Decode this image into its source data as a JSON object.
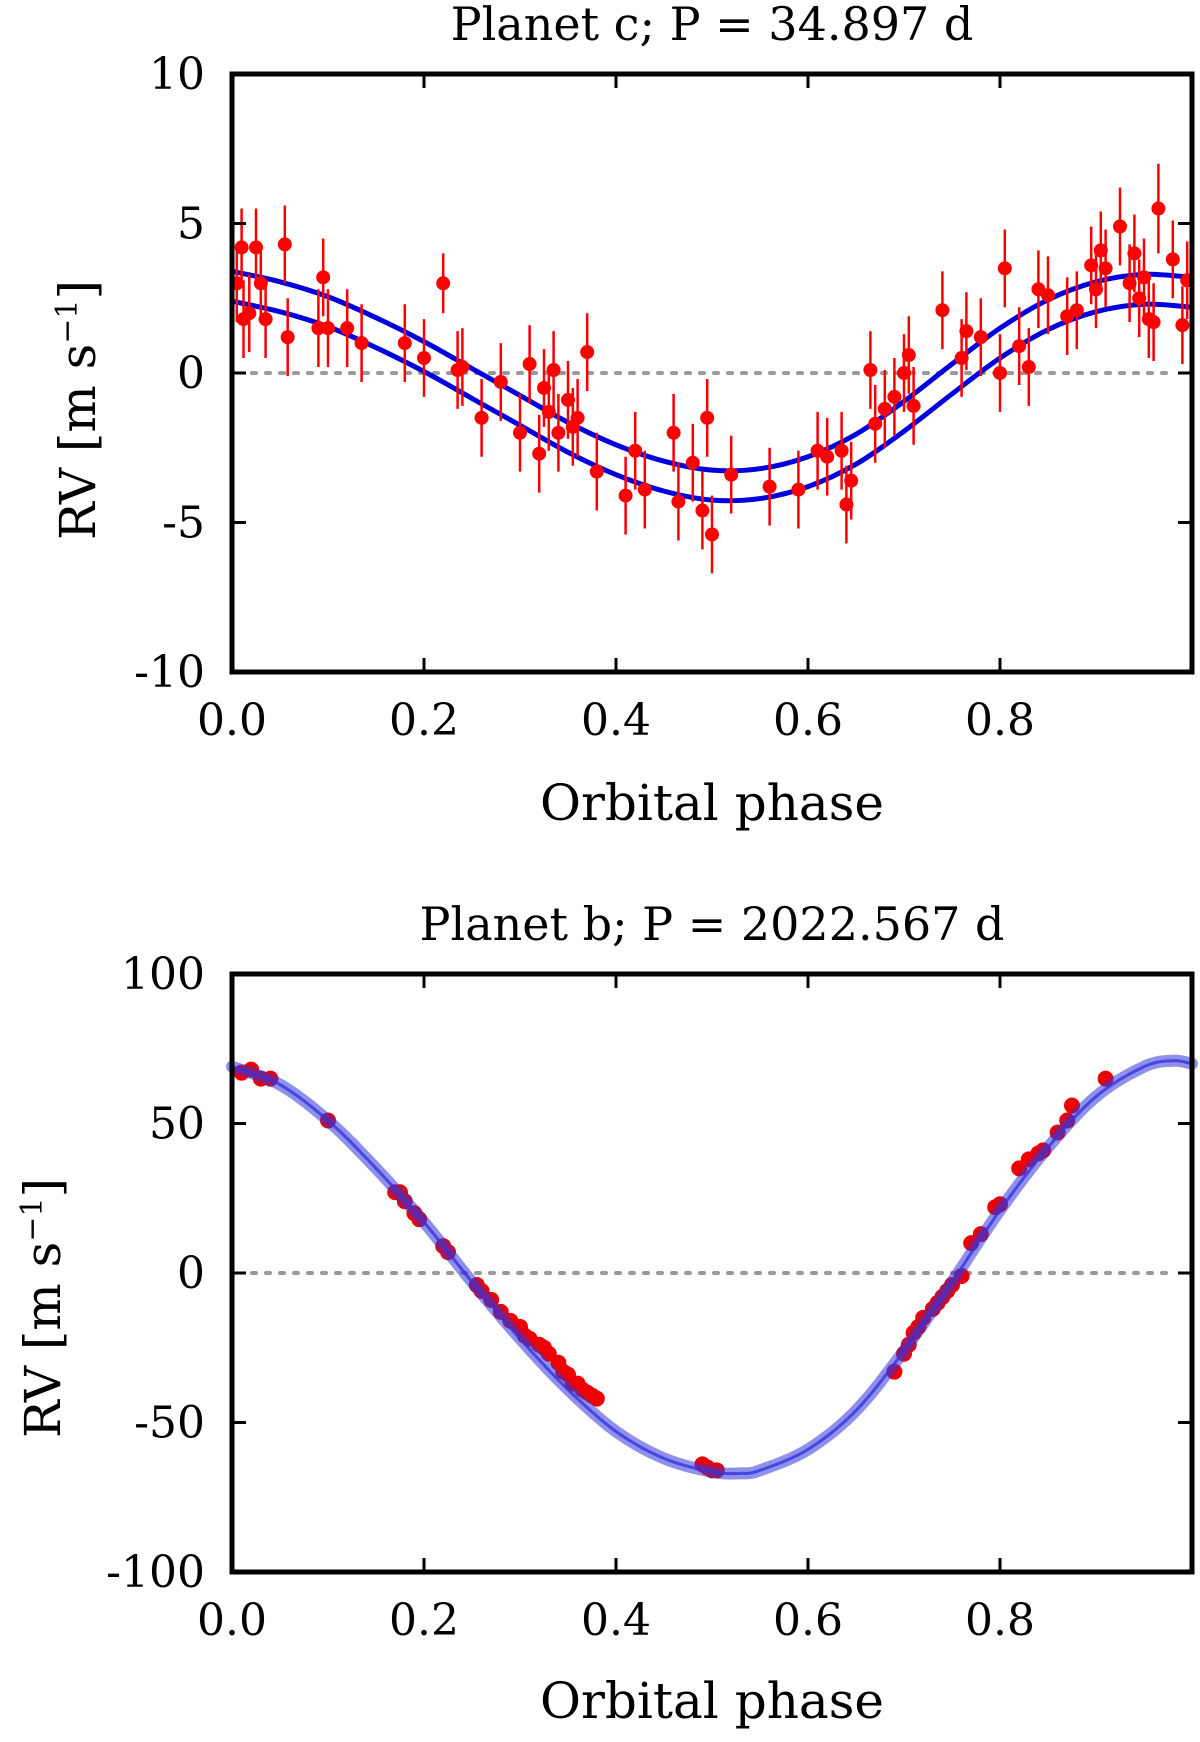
{
  "chart_data": [
    {
      "type": "scatter",
      "title": "Planet c; P = 34.897 d",
      "xlabel": "Orbital phase",
      "ylabel": {
        "main": "RV [m s",
        "sup": "−1",
        "close": "]"
      },
      "xlim": [
        0.0,
        1.0
      ],
      "ylim": [
        -10,
        10
      ],
      "xticks": [
        0.0,
        0.2,
        0.4,
        0.6,
        0.8
      ],
      "xtick_labels": [
        "0.0",
        "0.2",
        "0.4",
        "0.6",
        "0.8"
      ],
      "yticks": [
        10,
        5,
        0,
        -5,
        -10
      ],
      "ytick_labels": [
        "10",
        "5",
        "0",
        "-5",
        "-10"
      ],
      "zero_line": true,
      "colors": {
        "points": "#ff0000",
        "model": "#0000dd",
        "zero": "#999999",
        "frame": "#000000"
      },
      "model_band": {
        "kind": "pair",
        "upper_offset": 0.45,
        "lower_offset": -0.55,
        "curve": {
          "x": [
            0.0,
            0.05,
            0.1,
            0.15,
            0.2,
            0.25,
            0.3,
            0.35,
            0.4,
            0.45,
            0.5,
            0.55,
            0.6,
            0.65,
            0.7,
            0.75,
            0.8,
            0.85,
            0.9,
            0.95,
            1.0
          ],
          "y": [
            2.95,
            2.6,
            2.1,
            1.4,
            0.6,
            -0.3,
            -1.2,
            -2.1,
            -2.85,
            -3.4,
            -3.7,
            -3.65,
            -3.25,
            -2.5,
            -1.4,
            -0.15,
            1.05,
            2.0,
            2.6,
            2.85,
            2.75
          ]
        }
      },
      "points": {
        "x": [
          0.005,
          0.01,
          0.012,
          0.018,
          0.025,
          0.03,
          0.035,
          0.055,
          0.058,
          0.09,
          0.095,
          0.1,
          0.12,
          0.135,
          0.18,
          0.2,
          0.22,
          0.235,
          0.24,
          0.26,
          0.28,
          0.3,
          0.31,
          0.32,
          0.325,
          0.33,
          0.335,
          0.34,
          0.35,
          0.355,
          0.36,
          0.37,
          0.38,
          0.41,
          0.42,
          0.43,
          0.46,
          0.465,
          0.48,
          0.49,
          0.495,
          0.5,
          0.52,
          0.56,
          0.59,
          0.61,
          0.62,
          0.635,
          0.64,
          0.645,
          0.665,
          0.67,
          0.68,
          0.69,
          0.7,
          0.705,
          0.71,
          0.74,
          0.76,
          0.765,
          0.78,
          0.8,
          0.805,
          0.82,
          0.83,
          0.84,
          0.85,
          0.87,
          0.88,
          0.895,
          0.9,
          0.905,
          0.91,
          0.925,
          0.935,
          0.94,
          0.945,
          0.95,
          0.955,
          0.96,
          0.965,
          0.98,
          0.99,
          0.995
        ],
        "y": [
          3.0,
          4.2,
          1.8,
          2.0,
          4.2,
          3.0,
          1.8,
          4.3,
          1.2,
          1.5,
          3.2,
          1.5,
          1.5,
          1.0,
          1.0,
          0.5,
          3.0,
          0.1,
          0.2,
          -1.5,
          -0.3,
          -2.0,
          0.3,
          -2.7,
          -0.5,
          -1.3,
          0.1,
          -2.0,
          -0.9,
          -1.8,
          -1.5,
          0.7,
          -3.3,
          -4.1,
          -2.6,
          -3.9,
          -2.0,
          -4.3,
          -3.0,
          -4.6,
          -1.5,
          -5.4,
          -3.4,
          -3.8,
          -3.9,
          -2.6,
          -2.8,
          -2.6,
          -4.4,
          -3.6,
          0.1,
          -1.7,
          -1.2,
          -0.8,
          0.0,
          0.6,
          -1.1,
          2.1,
          0.5,
          1.4,
          1.2,
          0.0,
          3.5,
          0.9,
          0.2,
          2.8,
          2.6,
          1.9,
          2.1,
          3.6,
          2.8,
          4.1,
          3.5,
          4.9,
          3.0,
          4.0,
          2.5,
          3.2,
          1.8,
          1.7,
          5.5,
          3.8,
          1.6,
          3.1
        ],
        "err": [
          1.3,
          1.3,
          1.3,
          1.3,
          1.3,
          1.3,
          1.3,
          1.3,
          1.3,
          1.3,
          1.3,
          1.3,
          1.3,
          1.3,
          1.3,
          1.3,
          1.0,
          1.3,
          1.3,
          1.3,
          1.3,
          1.3,
          1.3,
          1.3,
          1.3,
          1.3,
          1.3,
          1.3,
          1.3,
          1.3,
          1.3,
          1.3,
          1.3,
          1.3,
          1.3,
          1.3,
          1.3,
          1.3,
          1.3,
          1.3,
          1.3,
          1.3,
          1.3,
          1.3,
          1.3,
          1.3,
          1.3,
          1.3,
          1.3,
          1.3,
          1.3,
          1.3,
          1.3,
          1.3,
          1.3,
          1.3,
          1.3,
          1.3,
          1.3,
          1.3,
          1.3,
          1.3,
          1.3,
          1.3,
          1.3,
          1.3,
          1.3,
          1.3,
          1.3,
          1.3,
          1.3,
          1.3,
          1.3,
          1.3,
          1.3,
          1.3,
          1.3,
          1.3,
          1.3,
          1.3,
          1.5,
          1.3,
          1.3,
          1.3
        ]
      }
    },
    {
      "type": "scatter",
      "title": "Planet b; P = 2022.567 d",
      "xlabel": "Orbital phase",
      "ylabel": {
        "main": "RV [m s",
        "sup": "−1",
        "close": "]"
      },
      "xlim": [
        0.0,
        1.0
      ],
      "ylim": [
        -100,
        100
      ],
      "xticks": [
        0.0,
        0.2,
        0.4,
        0.6,
        0.8
      ],
      "xtick_labels": [
        "0.0",
        "0.2",
        "0.4",
        "0.6",
        "0.8"
      ],
      "yticks": [
        100,
        50,
        0,
        -50,
        -100
      ],
      "ytick_labels": [
        "100",
        "50",
        "0",
        "-50",
        "-100"
      ],
      "zero_line": true,
      "colors": {
        "points": "#ee0000",
        "model": "#3333dd",
        "zero": "#999999",
        "frame": "#000000"
      },
      "model_band": {
        "kind": "thick",
        "curve": {
          "x": [
            0.0,
            0.05,
            0.1,
            0.15,
            0.2,
            0.25,
            0.3,
            0.35,
            0.4,
            0.45,
            0.5,
            0.53,
            0.55,
            0.6,
            0.65,
            0.7,
            0.75,
            0.8,
            0.85,
            0.9,
            0.95,
            0.98,
            1.0
          ],
          "y": [
            69,
            63,
            51,
            35,
            17,
            -3,
            -22,
            -39,
            -53,
            -62,
            -66.5,
            -67,
            -66,
            -59,
            -46,
            -26,
            -3,
            21,
            42,
            59,
            69,
            71,
            70
          ]
        }
      },
      "points": {
        "x": [
          0.01,
          0.02,
          0.03,
          0.04,
          0.1,
          0.17,
          0.175,
          0.18,
          0.19,
          0.195,
          0.22,
          0.225,
          0.255,
          0.26,
          0.27,
          0.28,
          0.29,
          0.3,
          0.305,
          0.31,
          0.32,
          0.325,
          0.33,
          0.34,
          0.345,
          0.35,
          0.355,
          0.36,
          0.365,
          0.37,
          0.375,
          0.38,
          0.49,
          0.495,
          0.5,
          0.505,
          0.69,
          0.7,
          0.705,
          0.71,
          0.715,
          0.72,
          0.73,
          0.735,
          0.74,
          0.745,
          0.75,
          0.76,
          0.77,
          0.78,
          0.795,
          0.8,
          0.82,
          0.83,
          0.84,
          0.845,
          0.86,
          0.87,
          0.875,
          0.91
        ],
        "y": [
          67,
          68,
          65,
          65,
          51,
          27,
          27,
          24,
          20,
          18,
          9,
          7,
          -4,
          -6,
          -9,
          -13,
          -16,
          -18,
          -21,
          -22,
          -24,
          -25,
          -27,
          -30,
          -33,
          -34,
          -37,
          -37,
          -39,
          -40,
          -41,
          -42,
          -64,
          -65,
          -66,
          -66,
          -33,
          -27,
          -24,
          -20,
          -18,
          -15,
          -12,
          -10,
          -8,
          -6,
          -4,
          -1,
          10,
          13,
          22,
          23,
          35,
          38,
          40,
          41,
          47,
          51,
          56,
          65
        ],
        "err": [
          1.0,
          1.0,
          1.0,
          1.0,
          1.0,
          1.0,
          1.0,
          1.0,
          1.0,
          1.0,
          1.0,
          1.0,
          1.0,
          1.0,
          1.0,
          1.0,
          1.0,
          1.0,
          1.0,
          1.0,
          1.0,
          1.0,
          1.0,
          1.0,
          1.0,
          1.0,
          1.0,
          1.0,
          1.0,
          1.0,
          1.0,
          1.0,
          1.0,
          1.0,
          1.0,
          1.0,
          1.0,
          1.0,
          1.0,
          1.0,
          1.0,
          1.0,
          1.0,
          1.0,
          1.0,
          1.0,
          1.0,
          1.0,
          1.0,
          1.0,
          1.0,
          1.0,
          1.0,
          1.0,
          1.0,
          1.0,
          1.0,
          1.0,
          1.0,
          1.0
        ]
      }
    }
  ]
}
